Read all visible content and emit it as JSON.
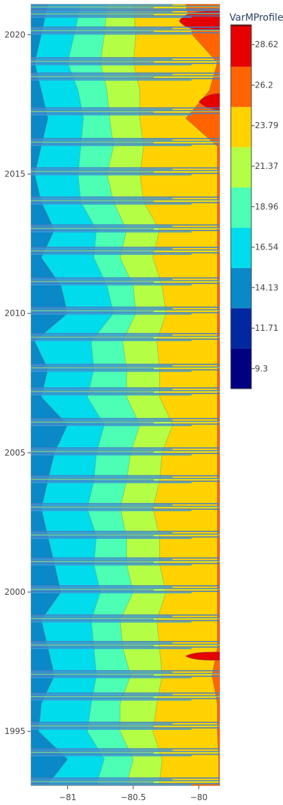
{
  "chart_data": {
    "type": "heatmap",
    "subtype": "contour",
    "title": "",
    "xlabel": "",
    "ylabel": "",
    "x": {
      "range": [
        -81.28,
        -79.84
      ],
      "ticks": [
        {
          "value": -81,
          "label": "−81"
        },
        {
          "value": -80.5,
          "label": "−80.5"
        },
        {
          "value": -80,
          "label": "−80"
        }
      ]
    },
    "y": {
      "range": [
        1993.05,
        2021.1
      ],
      "ticks": [
        {
          "value": 2020,
          "label": "2020"
        },
        {
          "value": 2015,
          "label": "2015"
        },
        {
          "value": 2010,
          "label": "2010"
        },
        {
          "value": 2005,
          "label": "2005"
        },
        {
          "value": 2000,
          "label": "2000"
        },
        {
          "value": 1995,
          "label": "1995"
        }
      ]
    },
    "colorbar": {
      "title": "VarMProfile",
      "range": [
        8.1,
        29.8
      ],
      "ticks": [
        {
          "value": 28.62,
          "label": "28.62"
        },
        {
          "value": 26.2,
          "label": "26.2"
        },
        {
          "value": 23.79,
          "label": "23.79"
        },
        {
          "value": 21.37,
          "label": "21.37"
        },
        {
          "value": 18.96,
          "label": "18.96"
        },
        {
          "value": 16.54,
          "label": "16.54"
        },
        {
          "value": 14.13,
          "label": "14.13"
        },
        {
          "value": 11.71,
          "label": "11.71"
        },
        {
          "value": 9.3,
          "label": "9.3"
        }
      ],
      "levels": [
        {
          "min": 8.1,
          "max": 10.5,
          "color": "#000080"
        },
        {
          "min": 10.5,
          "max": 12.9,
          "color": "#0028a0"
        },
        {
          "min": 12.9,
          "max": 15.3,
          "color": "#0a88c8"
        },
        {
          "min": 15.3,
          "max": 17.7,
          "color": "#00dcec"
        },
        {
          "min": 17.7,
          "max": 20.1,
          "color": "#4cffb4"
        },
        {
          "min": 20.1,
          "max": 22.5,
          "color": "#b4ff46"
        },
        {
          "min": 22.5,
          "max": 24.9,
          "color": "#ffd200"
        },
        {
          "min": 24.9,
          "max": 27.3,
          "color": "#ff6400"
        },
        {
          "min": 27.3,
          "max": 29.7,
          "color": "#e60000"
        },
        {
          "min": 29.7,
          "max": 32.1,
          "color": "#800000"
        }
      ]
    },
    "missing_bands": [
      2021.0,
      2020.75,
      2020.15,
      2019.05,
      2018.5,
      2017.25,
      2016.15,
      2015.1,
      2014.05,
      2013.05,
      2012.25,
      2011.15,
      2010.1,
      2009.15,
      2008.05,
      2007.2,
      2006.1,
      2005.05,
      2004.05,
      2003.05,
      2002.05,
      2001.1,
      2000.1,
      1999.05,
      1998.1,
      1997.05,
      1996.25,
      1995.2,
      1994.25,
      1993.2
    ],
    "isotherm_positions": {
      "note": "longitude of each level boundary (dT/level) at given year",
      "years": [
        1993.1,
        1994.0,
        1995.0,
        1996.0,
        1997.0,
        1998.0,
        1999.0,
        2000.0,
        2001.0,
        2002.0,
        2003.0,
        2004.0,
        2005.0,
        2006.0,
        2007.0,
        2008.0,
        2009.0,
        2010.0,
        2011.0,
        2012.0,
        2013.0,
        2014.0,
        2015.0,
        2016.0,
        2017.0,
        2018.0,
        2019.0,
        2020.0,
        2021.1
      ],
      "boundary_16_54": [
        -81.15,
        -81.0,
        -81.22,
        -81.2,
        -81.1,
        -81.15,
        -81.2,
        -81.05,
        -81.1,
        -81.15,
        -81.2,
        -81.15,
        -81.1,
        -81.0,
        -81.2,
        -81.15,
        -81.25,
        -81.0,
        -81.05,
        -81.2,
        -81.1,
        -81.2,
        -81.25,
        -81.2,
        -81.15,
        -81.2,
        -81.25,
        -81.2,
        -81.15
      ],
      "boundary_18_96": [
        -80.78,
        -80.72,
        -80.85,
        -80.82,
        -80.78,
        -80.8,
        -80.82,
        -80.75,
        -80.8,
        -80.78,
        -80.85,
        -80.8,
        -80.78,
        -80.72,
        -80.85,
        -80.8,
        -80.82,
        -80.65,
        -80.7,
        -80.8,
        -80.78,
        -80.9,
        -80.92,
        -80.9,
        -80.88,
        -80.92,
        -81.0,
        -80.95,
        -80.9
      ],
      "boundary_21_37": [
        -80.55,
        -80.5,
        -80.6,
        -80.6,
        -80.52,
        -80.58,
        -80.6,
        -80.5,
        -80.55,
        -80.55,
        -80.6,
        -80.55,
        -80.52,
        -80.45,
        -80.55,
        -80.55,
        -80.58,
        -80.48,
        -80.5,
        -80.6,
        -80.55,
        -80.65,
        -80.7,
        -80.65,
        -80.68,
        -80.7,
        -80.75,
        -80.72,
        -80.7
      ],
      "boundary_23_79": [
        -80.3,
        -80.28,
        -80.35,
        -80.32,
        -80.28,
        -80.3,
        -80.32,
        -80.25,
        -80.3,
        -80.3,
        -80.35,
        -80.3,
        -80.28,
        -80.2,
        -80.3,
        -80.3,
        -80.32,
        -80.25,
        -80.28,
        -80.35,
        -80.3,
        -80.42,
        -80.45,
        -80.42,
        -80.45,
        -80.45,
        -80.5,
        -80.48,
        -80.5
      ],
      "boundary_26_2": [
        -79.85,
        -79.85,
        -79.86,
        -79.86,
        -79.9,
        -79.86,
        -79.86,
        -79.86,
        -79.86,
        -79.86,
        -79.86,
        -79.86,
        -79.86,
        -79.86,
        -79.86,
        -79.86,
        -79.86,
        -79.86,
        -79.86,
        -79.86,
        -79.86,
        -79.86,
        -79.86,
        -79.86,
        -80.1,
        -79.92,
        -79.86,
        -80.05,
        -80.1
      ]
    },
    "hot_patches": [
      {
        "year": 2020.5,
        "x_from": -80.15,
        "level_index": 8,
        "half_height": 0.35
      },
      {
        "year": 2017.6,
        "x_from": -80.0,
        "level_index": 8,
        "half_height": 0.3
      },
      {
        "year": 1997.7,
        "x_from": -80.1,
        "level_index": 8,
        "half_height": 0.15
      }
    ]
  }
}
